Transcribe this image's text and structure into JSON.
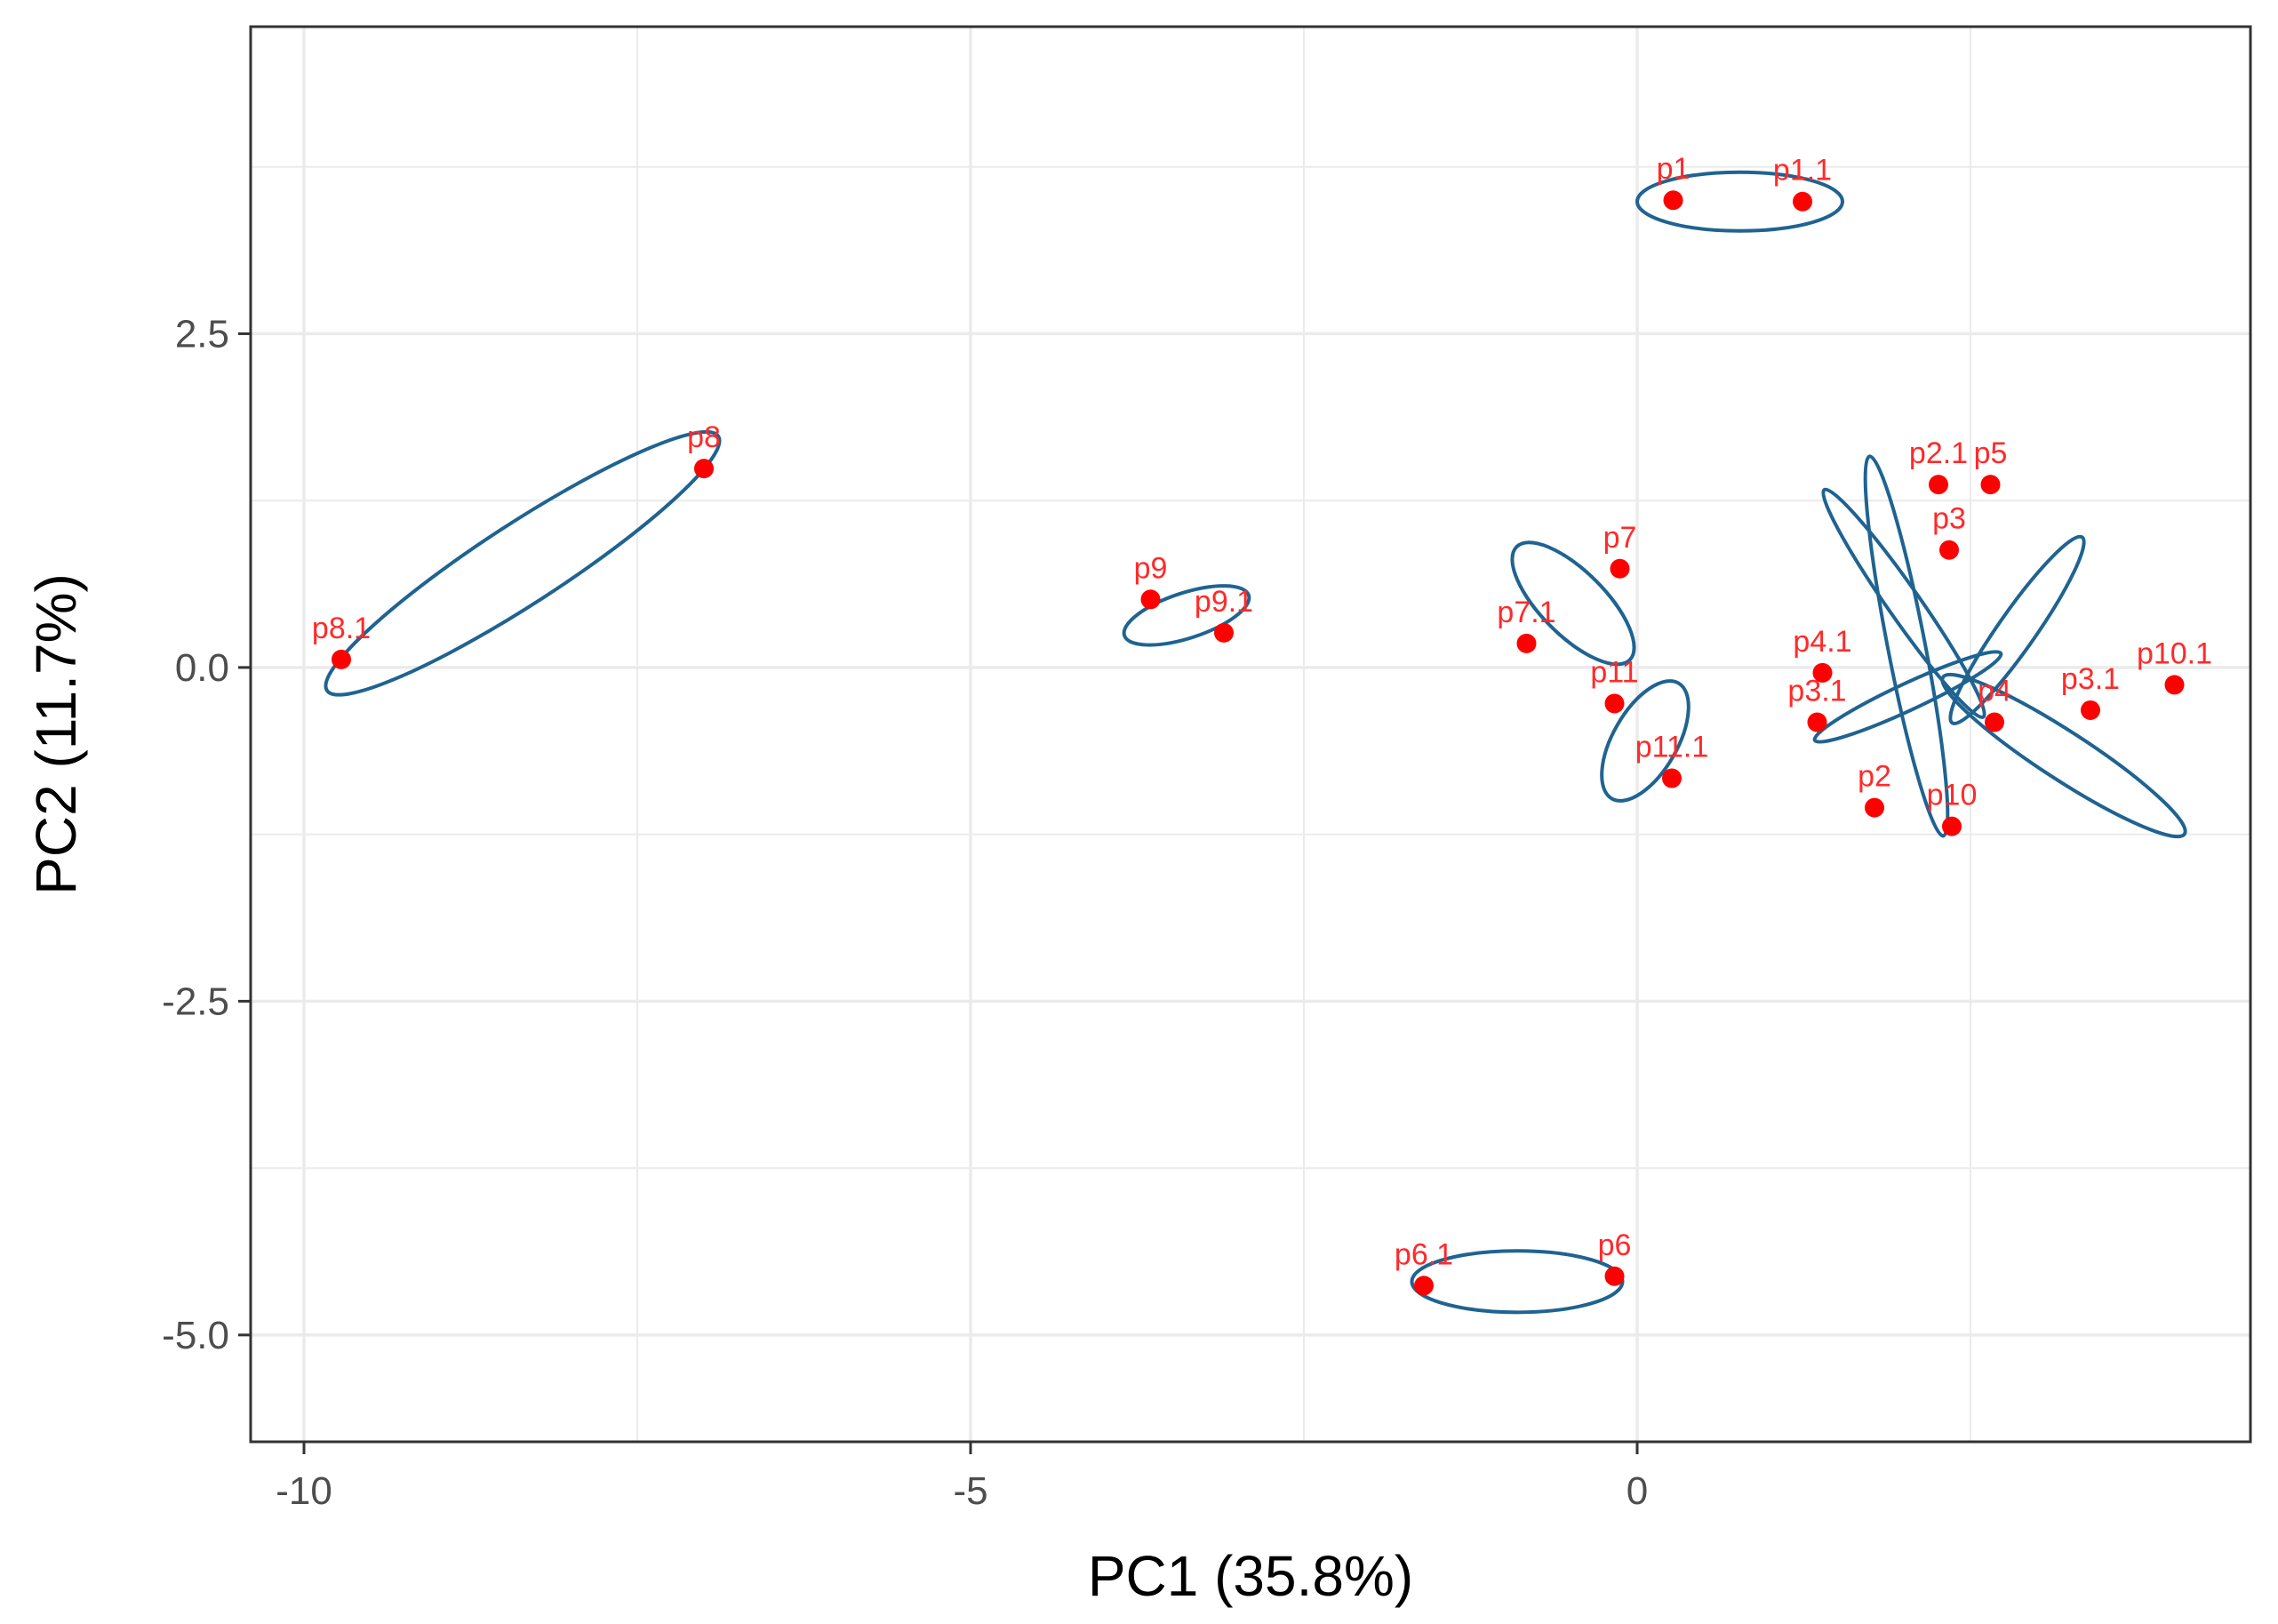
{
  "chart_data": {
    "type": "scatter",
    "title": "",
    "xlabel": "PC1 (35.8%)",
    "ylabel": "PC2 (11.7%)",
    "xlim": [
      -10.4,
      4.6
    ],
    "ylim": [
      -5.8,
      4.8
    ],
    "x_ticks": [
      -10,
      -5,
      0
    ],
    "x_tick_labels": [
      "-10",
      "-5",
      "0"
    ],
    "y_ticks": [
      2.5,
      0.0,
      -2.5,
      -5.0
    ],
    "y_tick_labels": [
      "2.5",
      "0.0",
      "-2.5",
      "-5.0"
    ],
    "grid": true,
    "colors": {
      "point": "#ff0000",
      "label": "#ff2a2a",
      "ellipse": "#1f6391",
      "grid": "#ebebeb",
      "axis": "#333333"
    },
    "points": [
      {
        "label": "p1",
        "x": 0.27,
        "y": 3.5
      },
      {
        "label": "p1.1",
        "x": 1.24,
        "y": 3.49
      },
      {
        "label": "p8",
        "x": -7.0,
        "y": 1.49
      },
      {
        "label": "p8.1",
        "x": -9.72,
        "y": 0.06
      },
      {
        "label": "p9",
        "x": -3.65,
        "y": 0.51
      },
      {
        "label": "p9.1",
        "x": -3.1,
        "y": 0.26
      },
      {
        "label": "p7",
        "x": -0.13,
        "y": 0.74
      },
      {
        "label": "p7.1",
        "x": -0.83,
        "y": 0.18
      },
      {
        "label": "p11",
        "x": -0.17,
        "y": -0.27
      },
      {
        "label": "p11.1",
        "x": 0.26,
        "y": -0.83
      },
      {
        "label": "p2.1",
        "x": 2.26,
        "y": 1.37
      },
      {
        "label": "p5",
        "x": 2.65,
        "y": 1.37
      },
      {
        "label": "p3",
        "x": 2.34,
        "y": 0.88
      },
      {
        "label": "p4.1",
        "x": 1.39,
        "y": -0.04
      },
      {
        "label": "p3.1",
        "x": 1.35,
        "y": -0.41
      },
      {
        "label": "p4",
        "x": 2.68,
        "y": -0.41
      },
      {
        "label": "p2",
        "x": 1.78,
        "y": -1.05
      },
      {
        "label": "p10",
        "x": 2.36,
        "y": -1.19
      },
      {
        "label": "p3.1",
        "x": 3.4,
        "y": -0.32
      },
      {
        "label": "p10.1",
        "x": 4.03,
        "y": -0.13
      },
      {
        "label": "p6.1",
        "x": -1.6,
        "y": -4.63
      },
      {
        "label": "p6",
        "x": -0.17,
        "y": -4.56
      }
    ],
    "ellipses": [
      {
        "group": "p1",
        "cx": 0.77,
        "cy": 3.49,
        "rx": 0.77,
        "ry": 0.22,
        "angle": 0
      },
      {
        "group": "p8",
        "cx": -8.36,
        "cy": 0.78,
        "rx": 1.75,
        "ry": 0.3,
        "angle": 33
      },
      {
        "group": "p9",
        "cx": -3.38,
        "cy": 0.39,
        "rx": 0.49,
        "ry": 0.17,
        "angle": 18
      },
      {
        "group": "p7",
        "cx": -0.48,
        "cy": 0.48,
        "rx": 0.6,
        "ry": 0.24,
        "angle": -45
      },
      {
        "group": "p11",
        "cx": 0.06,
        "cy": -0.55,
        "rx": 0.5,
        "ry": 0.24,
        "angle": 60
      },
      {
        "group": "p2",
        "cx": 2.02,
        "cy": 0.16,
        "rx": 1.45,
        "ry": 0.14,
        "angle": -79
      },
      {
        "group": "p3",
        "cx": 2.85,
        "cy": 0.28,
        "rx": 0.85,
        "ry": 0.14,
        "angle": 55
      },
      {
        "group": "p4",
        "cx": 2.03,
        "cy": -0.22,
        "rx": 0.77,
        "ry": 0.1,
        "angle": 25
      },
      {
        "group": "p5",
        "cx": 2.0,
        "cy": 0.48,
        "rx": 1.04,
        "ry": 0.12,
        "angle": -55
      },
      {
        "group": "p10",
        "cx": 3.2,
        "cy": -0.66,
        "rx": 1.08,
        "ry": 0.18,
        "angle": -33
      },
      {
        "group": "p6",
        "cx": -0.9,
        "cy": -4.6,
        "rx": 0.79,
        "ry": 0.23,
        "angle": 0
      }
    ]
  }
}
